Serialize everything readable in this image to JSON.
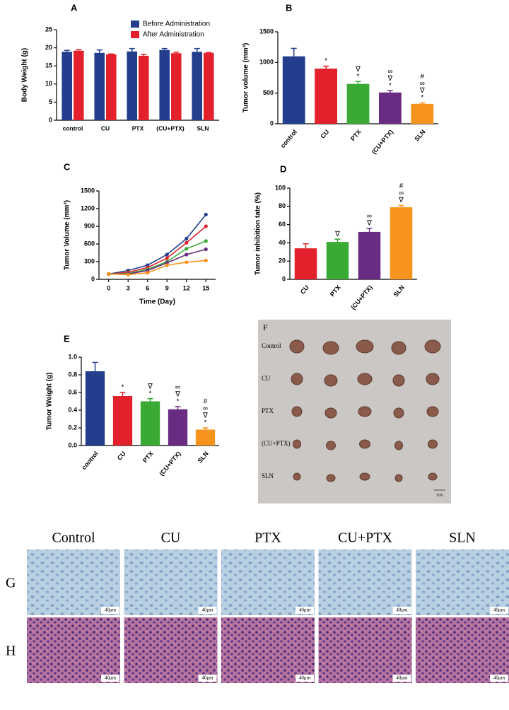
{
  "chart_data": [
    {
      "type": "bar",
      "panel_label": "A",
      "ylabel": "Body Weight (g)",
      "categories": [
        "control",
        "CU",
        "PTX",
        "(CU+PTX)",
        "SLN"
      ],
      "series": [
        {
          "name": "Before Administration",
          "color": "#223e8c",
          "values": [
            18.9,
            18.6,
            19.0,
            19.4,
            18.9
          ],
          "errors": [
            0.4,
            0.8,
            0.8,
            0.4,
            0.9
          ]
        },
        {
          "name": "After Administration",
          "color": "#e3212d",
          "values": [
            19.2,
            18.2,
            17.8,
            18.5,
            18.6
          ],
          "errors": [
            0.3,
            0.1,
            0.4,
            0.3,
            0.1
          ]
        }
      ],
      "ylim": [
        0,
        25
      ],
      "yticks": [
        0,
        5,
        10,
        15,
        20,
        25
      ],
      "legend": "upper right"
    },
    {
      "type": "bar",
      "panel_label": "B",
      "ylabel": "Tumor volume (mm³)",
      "categories": [
        "control",
        "CU",
        "PTX",
        "(CU+PTX)",
        "SLN"
      ],
      "values": [
        1100,
        900,
        650,
        510,
        325
      ],
      "errors": [
        130,
        40,
        40,
        30,
        15
      ],
      "colors": [
        "#223e8c",
        "#e3212d",
        "#3aaa35",
        "#6a2c82",
        "#f7941d"
      ],
      "annotations": [
        [],
        [
          "*"
        ],
        [
          "∇",
          "*"
        ],
        [
          "∞",
          "∇",
          "*"
        ],
        [
          "#",
          "∞",
          "∇",
          "*"
        ]
      ],
      "ylim": [
        0,
        1500
      ],
      "yticks": [
        0,
        500,
        1000,
        1500
      ]
    },
    {
      "type": "line",
      "panel_label": "C",
      "xlabel": "Time (Day)",
      "ylabel": "Tumor Volume (mm³)",
      "x": [
        0,
        3,
        6,
        9,
        12,
        15
      ],
      "series": [
        {
          "color": "#223e8c",
          "values": [
            90,
            150,
            240,
            420,
            690,
            1100
          ]
        },
        {
          "color": "#e3212d",
          "values": [
            90,
            120,
            200,
            360,
            620,
            900
          ]
        },
        {
          "color": "#3aaa35",
          "values": [
            90,
            100,
            170,
            300,
            520,
            650
          ]
        },
        {
          "color": "#6a2c82",
          "values": [
            90,
            90,
            150,
            280,
            420,
            510
          ]
        },
        {
          "color": "#f7941d",
          "values": [
            90,
            80,
            110,
            240,
            290,
            320
          ]
        }
      ],
      "xlim": [
        -1.5,
        16.5
      ],
      "xticks": [
        0,
        3,
        6,
        9,
        12,
        15
      ],
      "ylim": [
        0,
        1500
      ],
      "yticks": [
        0,
        300,
        600,
        900,
        1200,
        1500
      ]
    },
    {
      "type": "bar",
      "panel_label": "D",
      "ylabel": "Tumor inhibition tate (%)",
      "categories": [
        "CU",
        "PTX",
        "(CU+PTX)",
        "SLN"
      ],
      "values": [
        34,
        41,
        52,
        79
      ],
      "errors": [
        5,
        3,
        4,
        2
      ],
      "colors": [
        "#e3212d",
        "#3aaa35",
        "#6a2c82",
        "#f7941d"
      ],
      "annotations": [
        [],
        [
          "∇"
        ],
        [
          "∞",
          "∇"
        ],
        [
          "#",
          "∞",
          "∇"
        ]
      ],
      "ylim": [
        0,
        100
      ],
      "yticks": [
        0,
        20,
        40,
        60,
        80,
        100
      ]
    },
    {
      "type": "bar",
      "panel_label": "E",
      "ylabel": "Tumor Weight (g)",
      "categories": [
        "control",
        "CU",
        "PTX",
        "(CU+PTX)",
        "SLN"
      ],
      "values": [
        0.84,
        0.56,
        0.5,
        0.41,
        0.18
      ],
      "errors": [
        0.1,
        0.04,
        0.03,
        0.03,
        0.02
      ],
      "colors": [
        "#223e8c",
        "#e3212d",
        "#3aaa35",
        "#6a2c82",
        "#f7941d"
      ],
      "annotations": [
        [],
        [
          "*"
        ],
        [
          "∇",
          "*"
        ],
        [
          "∞",
          "∇",
          "*"
        ],
        [
          "#",
          "∞",
          "∇",
          "*"
        ]
      ],
      "ylim": [
        0,
        1.0
      ],
      "yticks": [
        {
          "value": 0,
          "label": "0.0"
        },
        0.2,
        0.4,
        0.6,
        0.8,
        {
          "value": 1.0,
          "label": "1.0"
        }
      ]
    }
  ],
  "tumor_photo": {
    "panel_label": "F",
    "rows": [
      "Control",
      "CU",
      "PTX",
      "(CU+PTX)",
      "SLN"
    ],
    "scale_bar": "1cm"
  },
  "micrographs": {
    "columns": [
      "Control",
      "CU",
      "PTX",
      "CU+PTX",
      "SLN"
    ],
    "rows": [
      "G",
      "H"
    ],
    "scale_bar": "40μm"
  }
}
